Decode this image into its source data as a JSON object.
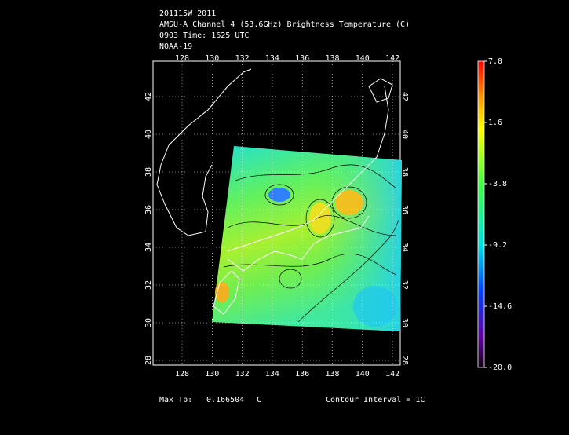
{
  "header": {
    "lines": [
      "201115W 2011",
      "AMSU-A Channel 4 (53.6GHz) Brightness Temperature (C)",
      "0903 Time: 1625 UTC",
      "NOAA-19"
    ]
  },
  "map": {
    "longitudes": [
      "128",
      "130",
      "132",
      "134",
      "136",
      "138",
      "140",
      "142"
    ],
    "latitudes": [
      "42",
      "40",
      "38",
      "36",
      "34",
      "32",
      "30",
      "28"
    ]
  },
  "colorbar": {
    "labels": [
      "7.0",
      "1.6",
      "-3.8",
      "-9.2",
      "-14.6",
      "-20.0"
    ]
  },
  "footer": {
    "max_label": "Max Tb:",
    "max_value": "0.166504",
    "max_unit": "C",
    "contour": "Contour Interval = 1C"
  }
}
